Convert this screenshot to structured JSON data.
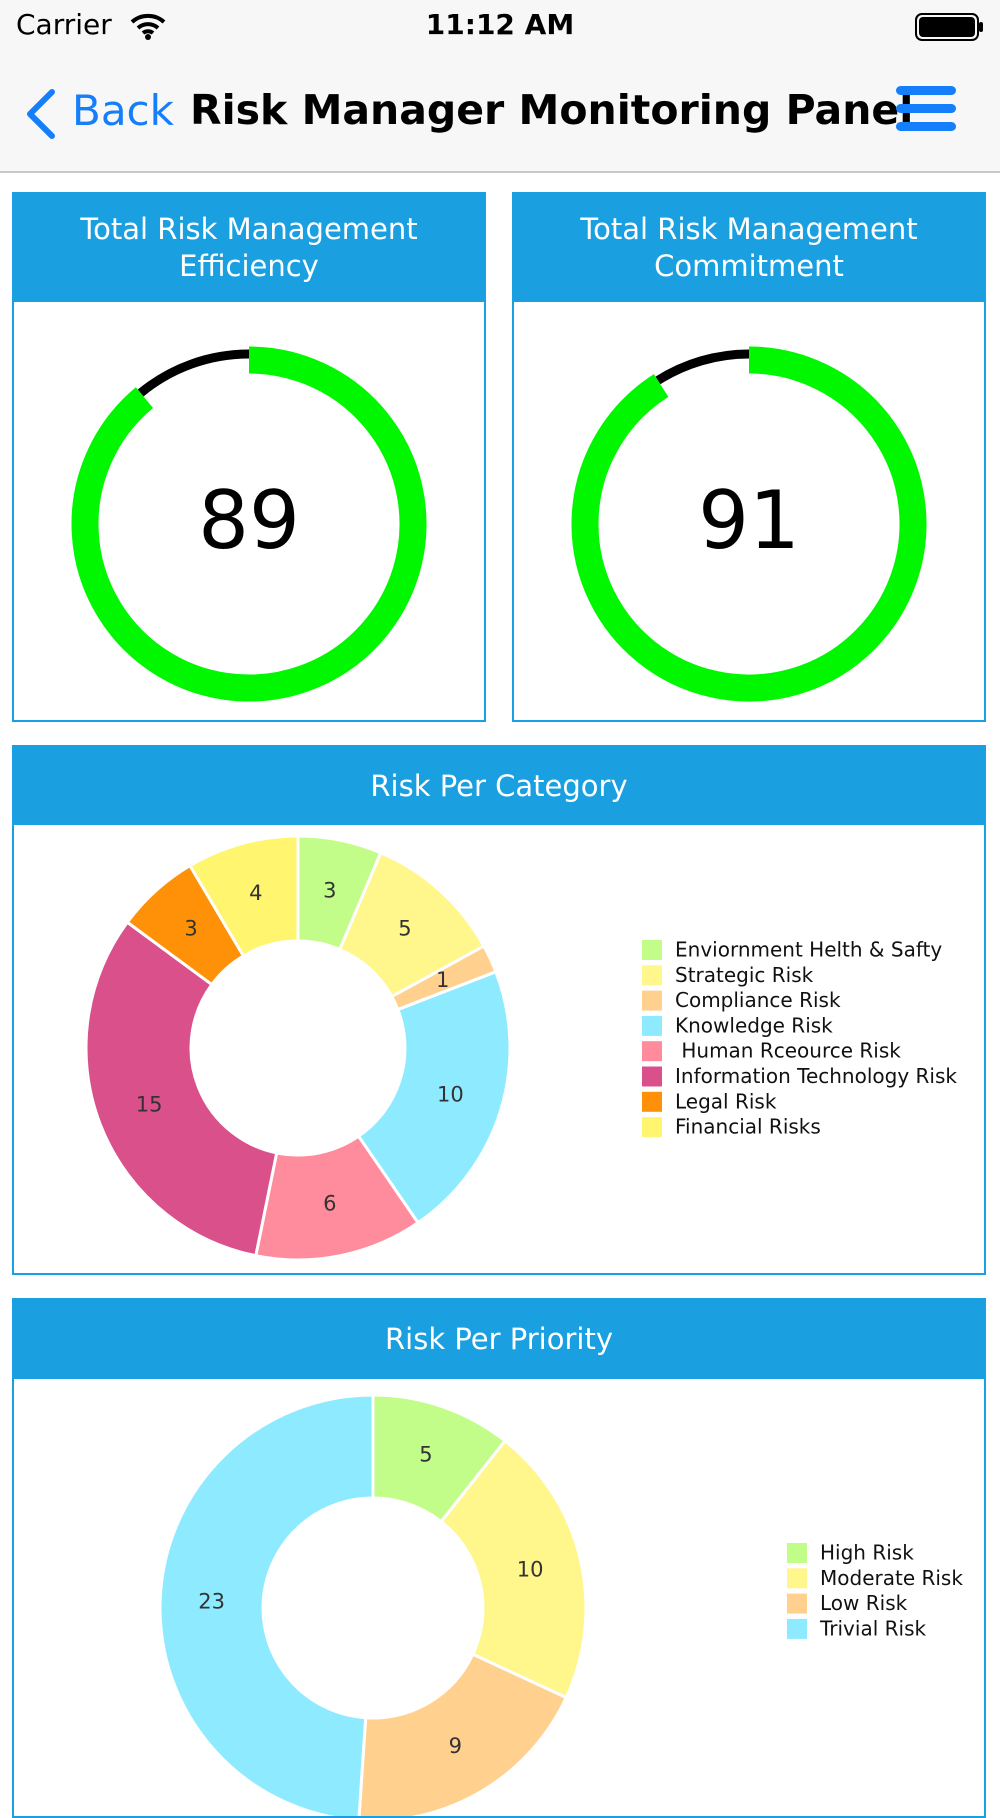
{
  "status_bar": {
    "carrier": "Carrier",
    "time": "11:12 AM"
  },
  "nav": {
    "back": "Back",
    "title": "Risk Manager Monitoring Panel"
  },
  "chart_data": [
    {
      "type": "gauge",
      "title": "Total Risk Management Efficiency",
      "value": 89,
      "ylim": [
        0,
        100
      ],
      "color": "#00f700",
      "rest_color": "#000000"
    },
    {
      "type": "gauge",
      "title": "Total Risk Management Commitment",
      "value": 91,
      "ylim": [
        0,
        100
      ],
      "color": "#00f700",
      "rest_color": "#000000"
    },
    {
      "type": "donut",
      "title": "Risk Per Category",
      "categories": [
        "Enviornment Helth & Safty",
        "Strategic Risk",
        "Compliance Risk",
        "Knowledge Risk",
        " Human Rceource Risk",
        "Information Technology Risk",
        "Legal Risk",
        "Financial Risks"
      ],
      "values": [
        3,
        5,
        1,
        10,
        6,
        15,
        3,
        4
      ],
      "colors": [
        "#c2fd8a",
        "#fff68c",
        "#ffd08e",
        "#8eeafe",
        "#fe8c9c",
        "#d9508a",
        "#ff9108",
        "#fff56e"
      ]
    },
    {
      "type": "donut",
      "title": "Risk Per Priority",
      "categories": [
        "High Risk",
        "Moderate Risk",
        "Low Risk",
        "Trivial Risk"
      ],
      "values": [
        5,
        10,
        9,
        23
      ],
      "colors": [
        "#c2fd8a",
        "#fff68c",
        "#ffd08e",
        "#8eeafe"
      ]
    }
  ]
}
